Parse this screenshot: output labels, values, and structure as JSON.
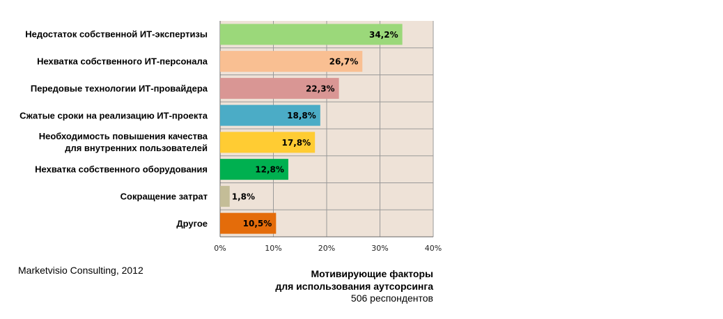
{
  "chart_data": {
    "type": "barh",
    "title": "Мотивирующие факторы\nдля использования аутсорсинга",
    "subtitle": "506 респондентов",
    "source": "Marketvisio Consulting, 2012",
    "categories": [
      "Недостаток собственной ИТ-экспертизы",
      "Нехватка собственного ИТ-персонала",
      "Передовые технологии ИТ-провайдера",
      "Сжатые сроки на реализацию ИТ-проекта",
      "Необходимость повышения качества\nдля внутренних пользователей",
      "Нехватка собственного оборудования",
      "Сокращение затрат",
      "Другое"
    ],
    "values": [
      34.2,
      26.7,
      22.3,
      18.8,
      17.8,
      12.8,
      1.8,
      10.5
    ],
    "value_labels": [
      "34,2%",
      "26,7%",
      "22,3%",
      "18,8%",
      "17,8%",
      "12,8%",
      "1,8%",
      "10,5%"
    ],
    "colors": [
      "#9bd87a",
      "#f9bf92",
      "#d99694",
      "#4bacc6",
      "#ffcc33",
      "#00b050",
      "#c4bd97",
      "#e46c0a"
    ],
    "xlim": [
      0,
      40
    ],
    "xticks": [
      {
        "value": 0,
        "label": "0%"
      },
      {
        "value": 10,
        "label": "10%"
      },
      {
        "value": 20,
        "label": "20%"
      },
      {
        "value": 30,
        "label": "30%"
      },
      {
        "value": 40,
        "label": "40%"
      }
    ],
    "grid": true
  }
}
